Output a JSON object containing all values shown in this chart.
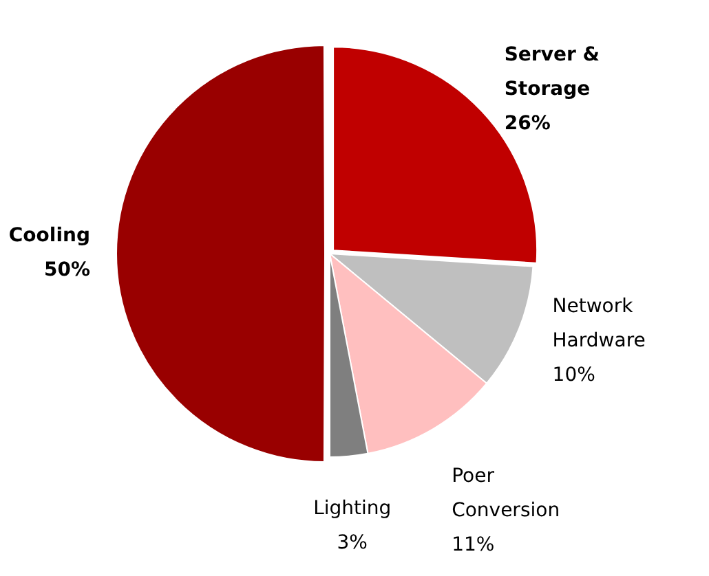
{
  "chart_data": {
    "type": "pie",
    "categories": [
      "Server & Storage",
      "Network Hardware",
      "Poer Conversion",
      "Lighting",
      "Cooling"
    ],
    "values": [
      26,
      10,
      11,
      3,
      50
    ],
    "colors": [
      "#c00000",
      "#bfbfbf",
      "#ffbfbf",
      "#7f7f7f",
      "#990000"
    ],
    "value_labels": [
      "26%",
      "10%",
      "11%",
      "3%",
      "50%"
    ],
    "legend": false
  }
}
